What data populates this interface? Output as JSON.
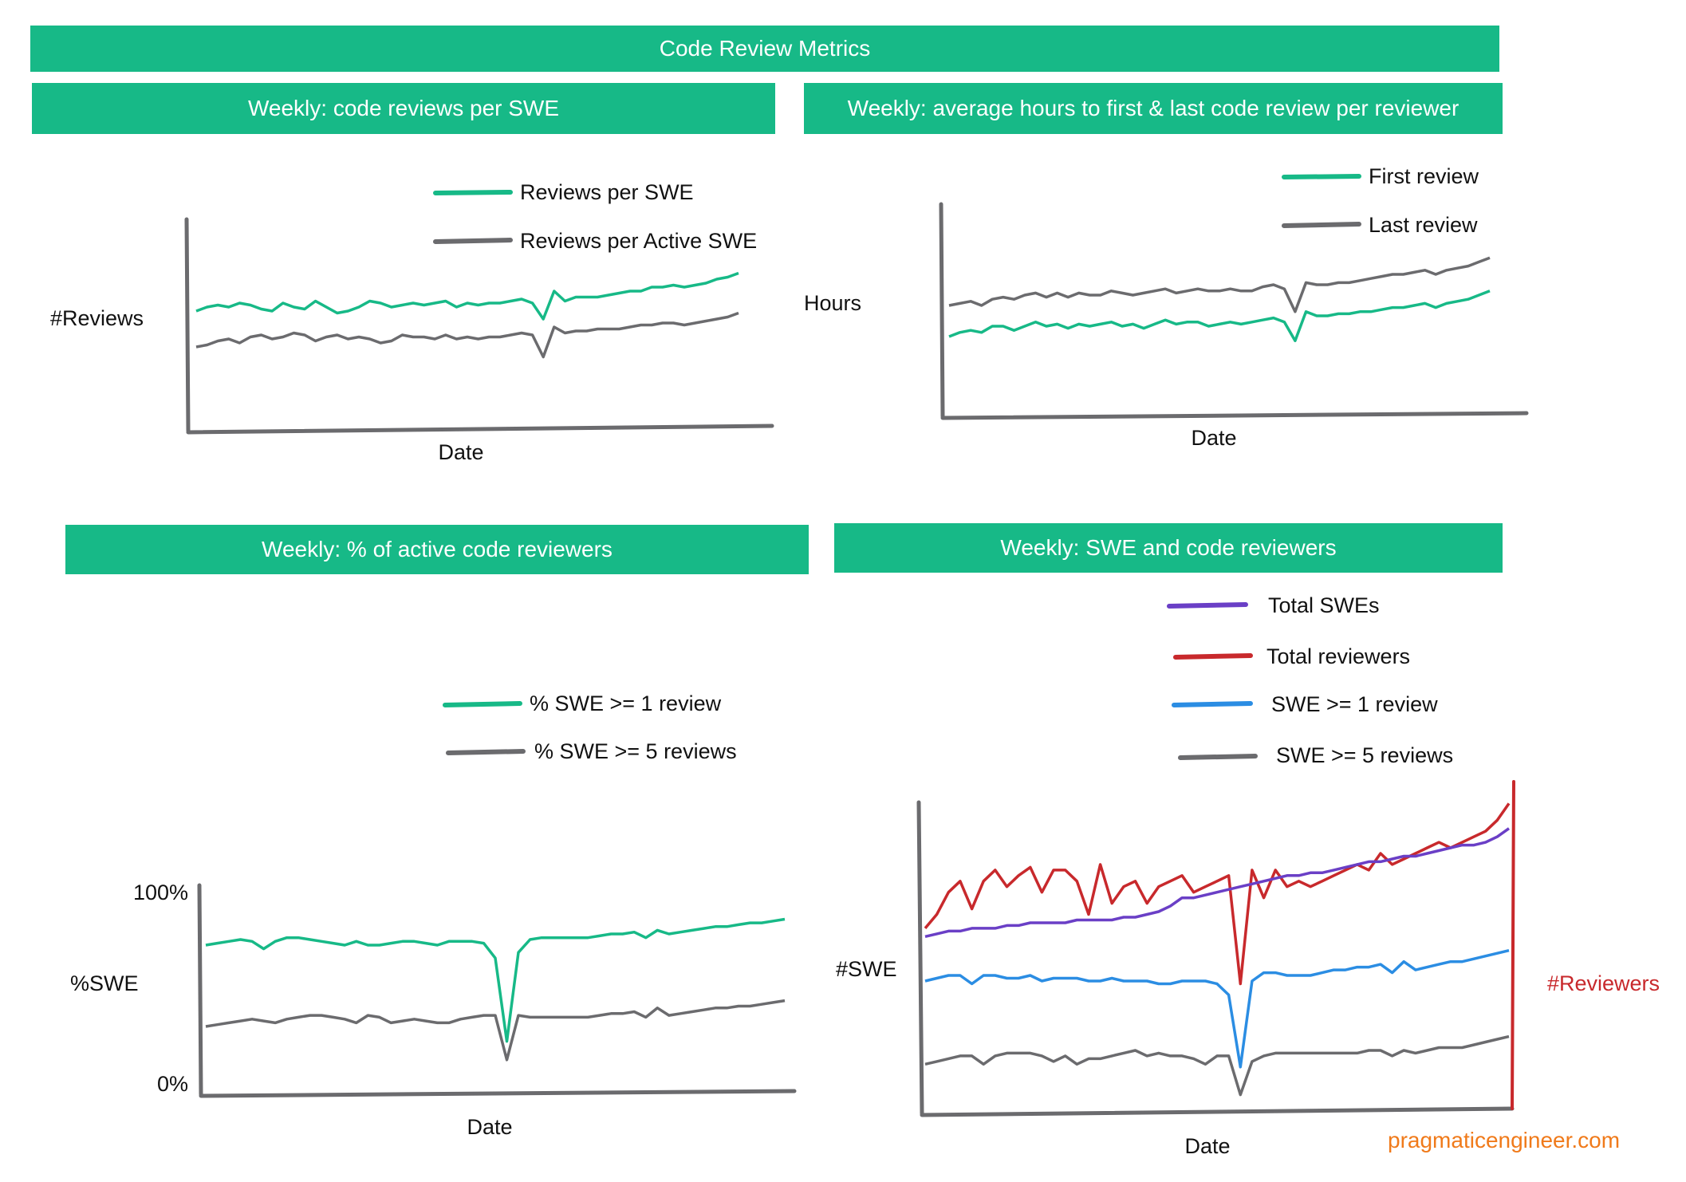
{
  "page_title": "Code Review Metrics",
  "footer_text": "pragmaticengineer.com",
  "colors": {
    "banner": "#17b987",
    "green": "#17b987",
    "gray": "#6b6b6e",
    "purple": "#6a3fc6",
    "red": "#c8292c",
    "blue": "#2b8de3",
    "footer": "#f07a1a"
  },
  "chart_data": [
    {
      "type": "line",
      "title": "Weekly: code reviews per SWE",
      "xlabel": "Date",
      "ylabel": "#Reviews",
      "x": [
        0,
        2,
        4,
        6,
        8,
        10,
        12,
        14,
        16,
        18,
        20,
        22,
        24,
        26,
        28,
        30,
        32,
        34,
        36,
        38,
        40,
        42,
        44,
        46,
        48,
        50,
        52,
        54,
        56,
        58,
        60,
        62,
        64,
        66,
        68,
        70,
        72,
        74,
        76,
        78,
        80,
        82,
        84,
        86,
        88,
        90,
        92,
        94,
        96,
        98,
        100
      ],
      "series": [
        {
          "name": "Reviews per SWE",
          "color": "green",
          "values": [
            48,
            50,
            51,
            50,
            52,
            51,
            49,
            48,
            52,
            50,
            49,
            53,
            50,
            47,
            48,
            50,
            53,
            52,
            50,
            51,
            52,
            51,
            52,
            53,
            50,
            52,
            51,
            52,
            52,
            53,
            54,
            52,
            44,
            58,
            53,
            55,
            55,
            55,
            56,
            57,
            58,
            58,
            60,
            60,
            61,
            60,
            61,
            62,
            64,
            65,
            67
          ]
        },
        {
          "name": "Reviews per Active SWE",
          "color": "gray",
          "values": [
            30,
            31,
            33,
            34,
            32,
            35,
            36,
            34,
            35,
            37,
            36,
            33,
            35,
            36,
            34,
            35,
            34,
            32,
            33,
            36,
            35,
            35,
            34,
            36,
            34,
            35,
            34,
            35,
            35,
            36,
            37,
            36,
            25,
            40,
            37,
            38,
            38,
            39,
            39,
            39,
            40,
            41,
            41,
            42,
            42,
            41,
            42,
            43,
            44,
            45,
            47
          ]
        }
      ],
      "legend": "top-right"
    },
    {
      "type": "line",
      "title": "Weekly: average hours to first & last code review per reviewer",
      "xlabel": "Date",
      "ylabel": "Hours",
      "x": [
        0,
        2,
        4,
        6,
        8,
        10,
        12,
        14,
        16,
        18,
        20,
        22,
        24,
        26,
        28,
        30,
        32,
        34,
        36,
        38,
        40,
        42,
        44,
        46,
        48,
        50,
        52,
        54,
        56,
        58,
        60,
        62,
        64,
        66,
        68,
        70,
        72,
        74,
        76,
        78,
        80,
        82,
        84,
        86,
        88,
        90,
        92,
        94,
        96,
        98,
        100
      ],
      "series": [
        {
          "name": "First review",
          "color": "green",
          "values": [
            30,
            32,
            33,
            32,
            35,
            35,
            33,
            35,
            37,
            35,
            36,
            34,
            36,
            35,
            36,
            37,
            35,
            36,
            34,
            36,
            38,
            36,
            37,
            37,
            35,
            36,
            37,
            36,
            37,
            38,
            39,
            37,
            28,
            42,
            40,
            40,
            41,
            41,
            42,
            42,
            43,
            44,
            44,
            45,
            46,
            44,
            46,
            47,
            48,
            50,
            52
          ]
        },
        {
          "name": "Last review",
          "color": "gray",
          "values": [
            45,
            46,
            47,
            45,
            48,
            49,
            48,
            50,
            51,
            49,
            51,
            49,
            51,
            50,
            50,
            52,
            51,
            50,
            51,
            52,
            53,
            51,
            52,
            53,
            52,
            52,
            53,
            52,
            52,
            54,
            55,
            53,
            42,
            56,
            55,
            55,
            56,
            56,
            57,
            58,
            59,
            60,
            60,
            61,
            62,
            60,
            62,
            63,
            64,
            66,
            68
          ]
        }
      ],
      "legend": "top-right"
    },
    {
      "type": "line",
      "title": "Weekly: % of active code reviewers",
      "xlabel": "Date",
      "ylabel": "%SWE",
      "yticks": [
        "100%",
        "0%"
      ],
      "ylim": [
        0,
        100
      ],
      "x": [
        0,
        2,
        4,
        6,
        8,
        10,
        12,
        14,
        16,
        18,
        20,
        22,
        24,
        26,
        28,
        30,
        32,
        34,
        36,
        38,
        40,
        42,
        44,
        46,
        48,
        50,
        52,
        54,
        56,
        58,
        60,
        62,
        64,
        66,
        68,
        70,
        72,
        74,
        76,
        78,
        80,
        82,
        84,
        86,
        88,
        90,
        92,
        94,
        96,
        98,
        100
      ],
      "series": [
        {
          "name": "% SWE >= 1 review",
          "color": "green",
          "values": [
            72,
            73,
            74,
            75,
            74,
            70,
            74,
            76,
            76,
            75,
            74,
            73,
            72,
            74,
            72,
            72,
            73,
            74,
            74,
            73,
            72,
            74,
            74,
            74,
            73,
            65,
            20,
            68,
            75,
            76,
            76,
            76,
            76,
            76,
            77,
            78,
            78,
            79,
            76,
            80,
            78,
            79,
            80,
            81,
            82,
            82,
            83,
            84,
            84,
            85,
            86
          ]
        },
        {
          "name": "% SWE >= 5 reviews",
          "color": "gray",
          "values": [
            28,
            29,
            30,
            31,
            32,
            31,
            30,
            32,
            33,
            34,
            34,
            33,
            32,
            30,
            34,
            33,
            30,
            31,
            32,
            31,
            30,
            30,
            32,
            33,
            34,
            34,
            10,
            34,
            33,
            33,
            33,
            33,
            33,
            33,
            34,
            35,
            35,
            36,
            33,
            38,
            34,
            35,
            36,
            37,
            38,
            38,
            39,
            39,
            40,
            41,
            42
          ]
        }
      ],
      "legend": "top-right"
    },
    {
      "type": "line",
      "title": "Weekly: SWE and code reviewers",
      "xlabel": "Date",
      "ylabel": "#SWE",
      "y2label": "#Reviewers",
      "x": [
        0,
        2,
        4,
        6,
        8,
        10,
        12,
        14,
        16,
        18,
        20,
        22,
        24,
        26,
        28,
        30,
        32,
        34,
        36,
        38,
        40,
        42,
        44,
        46,
        48,
        50,
        52,
        54,
        56,
        58,
        60,
        62,
        64,
        66,
        68,
        70,
        72,
        74,
        76,
        78,
        80,
        82,
        84,
        86,
        88,
        90,
        92,
        94,
        96,
        98,
        100
      ],
      "series": [
        {
          "name": "Total SWEs",
          "color": "purple",
          "values": [
            52,
            53,
            54,
            54,
            55,
            55,
            55,
            56,
            56,
            57,
            57,
            57,
            57,
            58,
            58,
            58,
            58,
            59,
            59,
            60,
            61,
            63,
            66,
            66,
            67,
            68,
            69,
            70,
            71,
            72,
            73,
            74,
            74,
            75,
            75,
            76,
            77,
            78,
            79,
            79,
            80,
            81,
            81,
            82,
            83,
            84,
            85,
            85,
            86,
            88,
            91
          ]
        },
        {
          "name": "Total reviewers",
          "color": "red",
          "values": [
            55,
            60,
            68,
            72,
            62,
            72,
            76,
            70,
            74,
            77,
            68,
            76,
            76,
            72,
            60,
            78,
            64,
            70,
            72,
            64,
            70,
            72,
            74,
            68,
            70,
            72,
            74,
            35,
            76,
            66,
            76,
            70,
            72,
            70,
            72,
            74,
            76,
            78,
            76,
            82,
            78,
            80,
            82,
            84,
            86,
            84,
            86,
            88,
            90,
            94,
            100
          ]
        },
        {
          "name": "SWE >= 1 review",
          "color": "blue",
          "values": [
            36,
            37,
            38,
            38,
            35,
            38,
            38,
            37,
            37,
            38,
            36,
            37,
            37,
            37,
            36,
            36,
            37,
            36,
            36,
            36,
            35,
            35,
            36,
            36,
            36,
            35,
            31,
            5,
            36,
            39,
            39,
            38,
            38,
            38,
            39,
            40,
            40,
            41,
            41,
            42,
            39,
            43,
            40,
            41,
            42,
            43,
            43,
            44,
            45,
            46,
            47
          ]
        },
        {
          "name": "SWE >= 5 reviews",
          "color": "gray",
          "values": [
            6,
            7,
            8,
            9,
            9,
            6,
            9,
            10,
            10,
            10,
            9,
            7,
            9,
            6,
            8,
            8,
            9,
            10,
            11,
            9,
            10,
            9,
            9,
            8,
            6,
            9,
            9,
            -5,
            7,
            9,
            10,
            10,
            10,
            10,
            10,
            10,
            10,
            10,
            11,
            11,
            9,
            11,
            10,
            11,
            12,
            12,
            12,
            13,
            14,
            15,
            16
          ]
        }
      ],
      "legend": "top-right"
    }
  ]
}
